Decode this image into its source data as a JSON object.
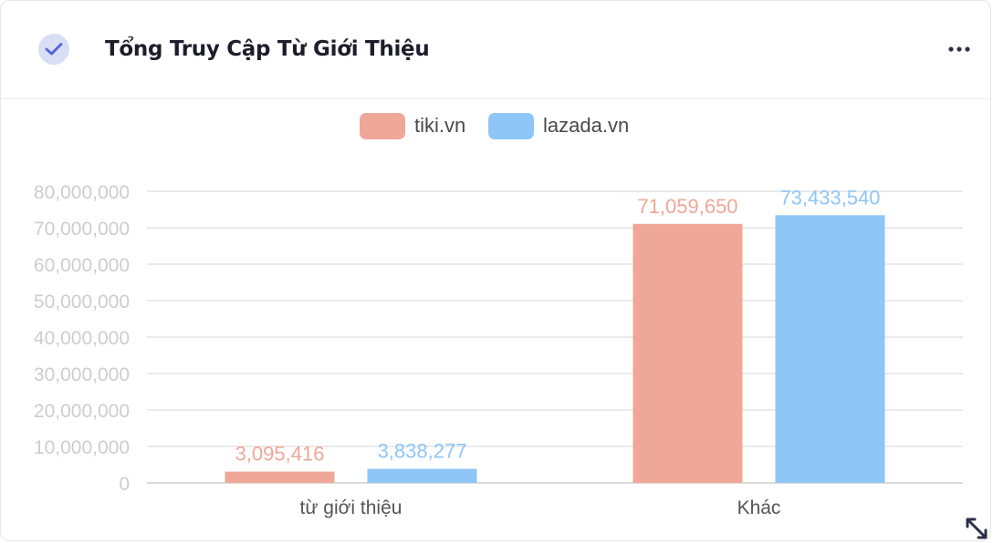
{
  "header": {
    "title": "Tổng Truy Cập Từ Giới Thiệu",
    "check_icon": "check-circle-icon",
    "more_icon": "more-horizontal-icon",
    "resize_icon": "resize-diagonal-icon"
  },
  "chart_data": {
    "type": "bar",
    "title": "",
    "xlabel": "",
    "ylabel": "",
    "categories": [
      "từ giới thiệu",
      "Khác"
    ],
    "series": [
      {
        "name": "tiki.vn",
        "color": "#efa797",
        "values": [
          3095416,
          71059650
        ],
        "labels": [
          "3,095,416",
          "71,059,650"
        ]
      },
      {
        "name": "lazada.vn",
        "color": "#8ec6f7",
        "values": [
          3838277,
          73433540
        ],
        "labels": [
          "3,838,277",
          "73,433,540"
        ]
      }
    ],
    "ylim": [
      0,
      80000000
    ],
    "yticks": [
      0,
      10000000,
      20000000,
      30000000,
      40000000,
      50000000,
      60000000,
      70000000,
      80000000
    ],
    "ytick_labels": [
      "0",
      "10,000,000",
      "20,000,000",
      "30,000,000",
      "40,000,000",
      "50,000,000",
      "60,000,000",
      "70,000,000",
      "80,000,000"
    ],
    "grid": true,
    "legend_position": "top-center"
  }
}
